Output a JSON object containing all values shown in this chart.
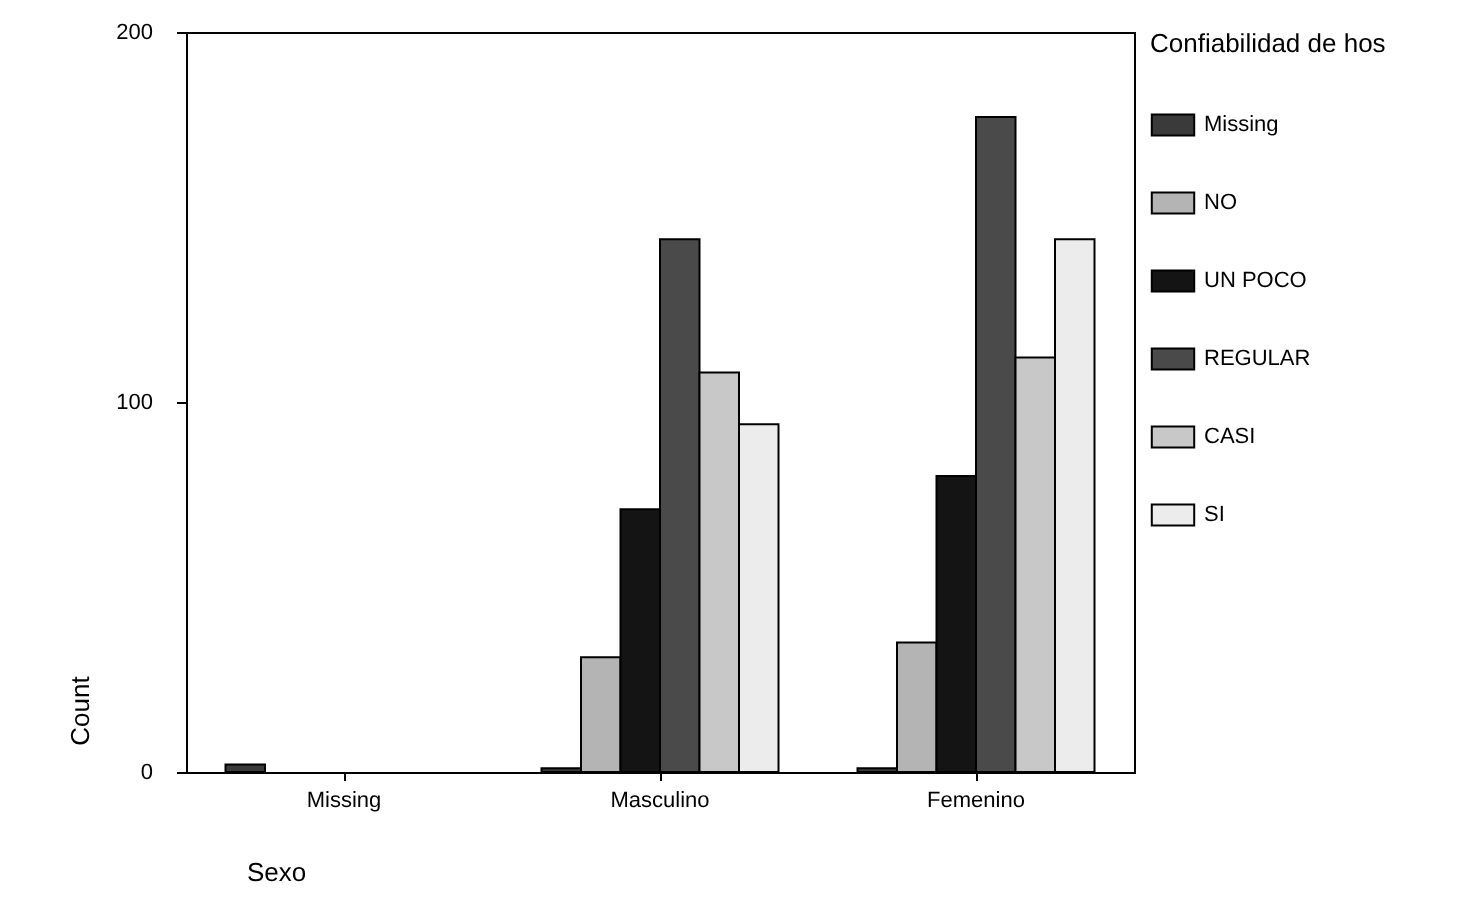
{
  "chart_data": {
    "type": "bar",
    "xlabel": "Sexo",
    "ylabel": "Count",
    "legend_title": "Confiabilidad de hos",
    "categories": [
      "Missing",
      "Masculino",
      "Femenino"
    ],
    "series": [
      {
        "name": "Missing",
        "color": "#3a3a3a",
        "values": [
          2,
          1,
          1
        ]
      },
      {
        "name": "NO",
        "color": "#b4b4b4",
        "values": [
          0,
          31,
          35
        ]
      },
      {
        "name": "UN POCO",
        "color": "#141414",
        "values": [
          0,
          71,
          80
        ]
      },
      {
        "name": "REGULAR",
        "color": "#4a4a4a",
        "values": [
          0,
          144,
          177
        ]
      },
      {
        "name": "CASI",
        "color": "#c8c8c8",
        "values": [
          0,
          108,
          112
        ]
      },
      {
        "name": "SI",
        "color": "#ececec",
        "values": [
          0,
          94,
          144
        ]
      }
    ],
    "ylim": [
      0,
      200
    ],
    "yticks": [
      0,
      100,
      200
    ],
    "grid": false,
    "legend": "right"
  }
}
